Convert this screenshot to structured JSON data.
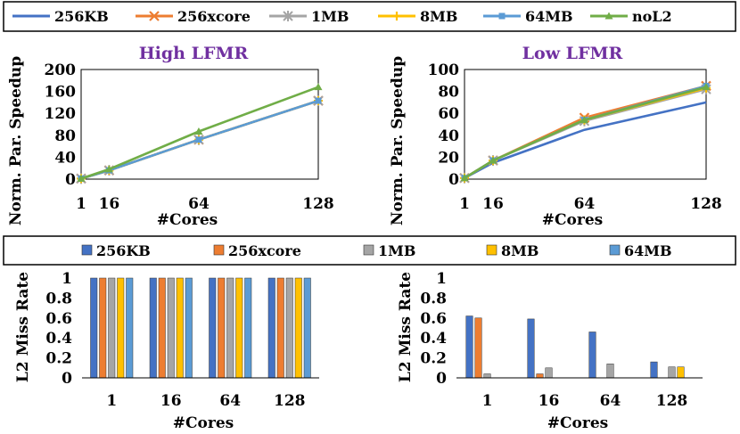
{
  "colors": {
    "256KB": "#4472C4",
    "256xcore": "#ED7D31",
    "1MB": "#A5A5A5",
    "8MB": "#FFC000",
    "64MB": "#5B9BD5",
    "noL2": "#70AD47",
    "title": "#7030A0"
  },
  "top_legend": {
    "items": [
      {
        "key": "256KB",
        "label": "256KB",
        "marker": "none"
      },
      {
        "key": "256xcore",
        "label": "256xcore",
        "marker": "x"
      },
      {
        "key": "1MB",
        "label": "1MB",
        "marker": "star"
      },
      {
        "key": "8MB",
        "label": "8MB",
        "marker": "plus"
      },
      {
        "key": "64MB",
        "label": "64MB",
        "marker": "square"
      },
      {
        "key": "noL2",
        "label": "noL2",
        "marker": "triangle"
      }
    ]
  },
  "bottom_legend": {
    "items": [
      {
        "key": "256KB",
        "label": "256KB"
      },
      {
        "key": "256xcore",
        "label": "256xcore"
      },
      {
        "key": "1MB",
        "label": "1MB"
      },
      {
        "key": "8MB",
        "label": "8MB"
      },
      {
        "key": "64MB",
        "label": "64MB"
      }
    ]
  },
  "chart_data": [
    {
      "type": "line",
      "title": "High LFMR",
      "xlabel": "#Cores",
      "ylabel": "Norm. Par. Speedup",
      "x": [
        1,
        16,
        64,
        128
      ],
      "xlim": [
        1,
        128
      ],
      "ylim": [
        0,
        200
      ],
      "yticks": [
        0,
        40,
        80,
        120,
        160,
        200
      ],
      "series": [
        {
          "name": "256KB",
          "values": [
            1,
            16,
            72,
            143
          ]
        },
        {
          "name": "256xcore",
          "values": [
            1,
            16,
            72,
            143
          ]
        },
        {
          "name": "1MB",
          "values": [
            1,
            16,
            72,
            143
          ]
        },
        {
          "name": "8MB",
          "values": [
            1,
            16,
            72,
            143
          ]
        },
        {
          "name": "64MB",
          "values": [
            1,
            16,
            72,
            143
          ]
        },
        {
          "name": "noL2",
          "values": [
            1,
            18,
            87,
            168
          ]
        }
      ]
    },
    {
      "type": "line",
      "title": "Low LFMR",
      "xlabel": "#Cores",
      "ylabel": "Norm. Par. Speedup",
      "x": [
        1,
        16,
        64,
        128
      ],
      "xlim": [
        1,
        128
      ],
      "ylim": [
        0,
        100
      ],
      "yticks": [
        0,
        20,
        40,
        60,
        80,
        100
      ],
      "series": [
        {
          "name": "256KB",
          "values": [
            1,
            15,
            45,
            70
          ]
        },
        {
          "name": "256xcore",
          "values": [
            1,
            17,
            56,
            85
          ]
        },
        {
          "name": "1MB",
          "values": [
            1,
            17,
            53,
            82
          ]
        },
        {
          "name": "8MB",
          "values": [
            1,
            17,
            54,
            83
          ]
        },
        {
          "name": "64MB",
          "values": [
            1,
            17,
            54,
            85
          ]
        },
        {
          "name": "noL2",
          "values": [
            1,
            17,
            54,
            84
          ]
        }
      ]
    },
    {
      "type": "bar",
      "title": "",
      "xlabel": "#Cores",
      "ylabel": "L2 Miss Rate",
      "categories": [
        "1",
        "16",
        "64",
        "128"
      ],
      "ylim": [
        0,
        1
      ],
      "yticks": [
        "0",
        "0.2",
        "0.4",
        "0.6",
        "0.8",
        "1"
      ],
      "series": [
        {
          "name": "256KB",
          "values": [
            1,
            1,
            1,
            1
          ]
        },
        {
          "name": "256xcore",
          "values": [
            1,
            1,
            1,
            1
          ]
        },
        {
          "name": "1MB",
          "values": [
            1,
            1,
            1,
            1
          ]
        },
        {
          "name": "8MB",
          "values": [
            1,
            1,
            1,
            1
          ]
        },
        {
          "name": "64MB",
          "values": [
            1,
            1,
            1,
            1
          ]
        }
      ]
    },
    {
      "type": "bar",
      "title": "",
      "xlabel": "#Cores",
      "ylabel": "L2 Miss Rate",
      "categories": [
        "1",
        "16",
        "64",
        "128"
      ],
      "ylim": [
        0,
        1
      ],
      "yticks": [
        "0",
        "0.2",
        "0.4",
        "0.6",
        "0.8",
        "1"
      ],
      "series": [
        {
          "name": "256KB",
          "values": [
            0.62,
            0.59,
            0.46,
            0.16
          ]
        },
        {
          "name": "256xcore",
          "values": [
            0.6,
            0.04,
            0.0,
            0.0
          ]
        },
        {
          "name": "1MB",
          "values": [
            0.04,
            0.1,
            0.14,
            0.11
          ]
        },
        {
          "name": "8MB",
          "values": [
            0.0,
            0.0,
            0.0,
            0.11
          ]
        },
        {
          "name": "64MB",
          "values": [
            0.0,
            0.0,
            0.0,
            0.0
          ]
        }
      ]
    }
  ]
}
